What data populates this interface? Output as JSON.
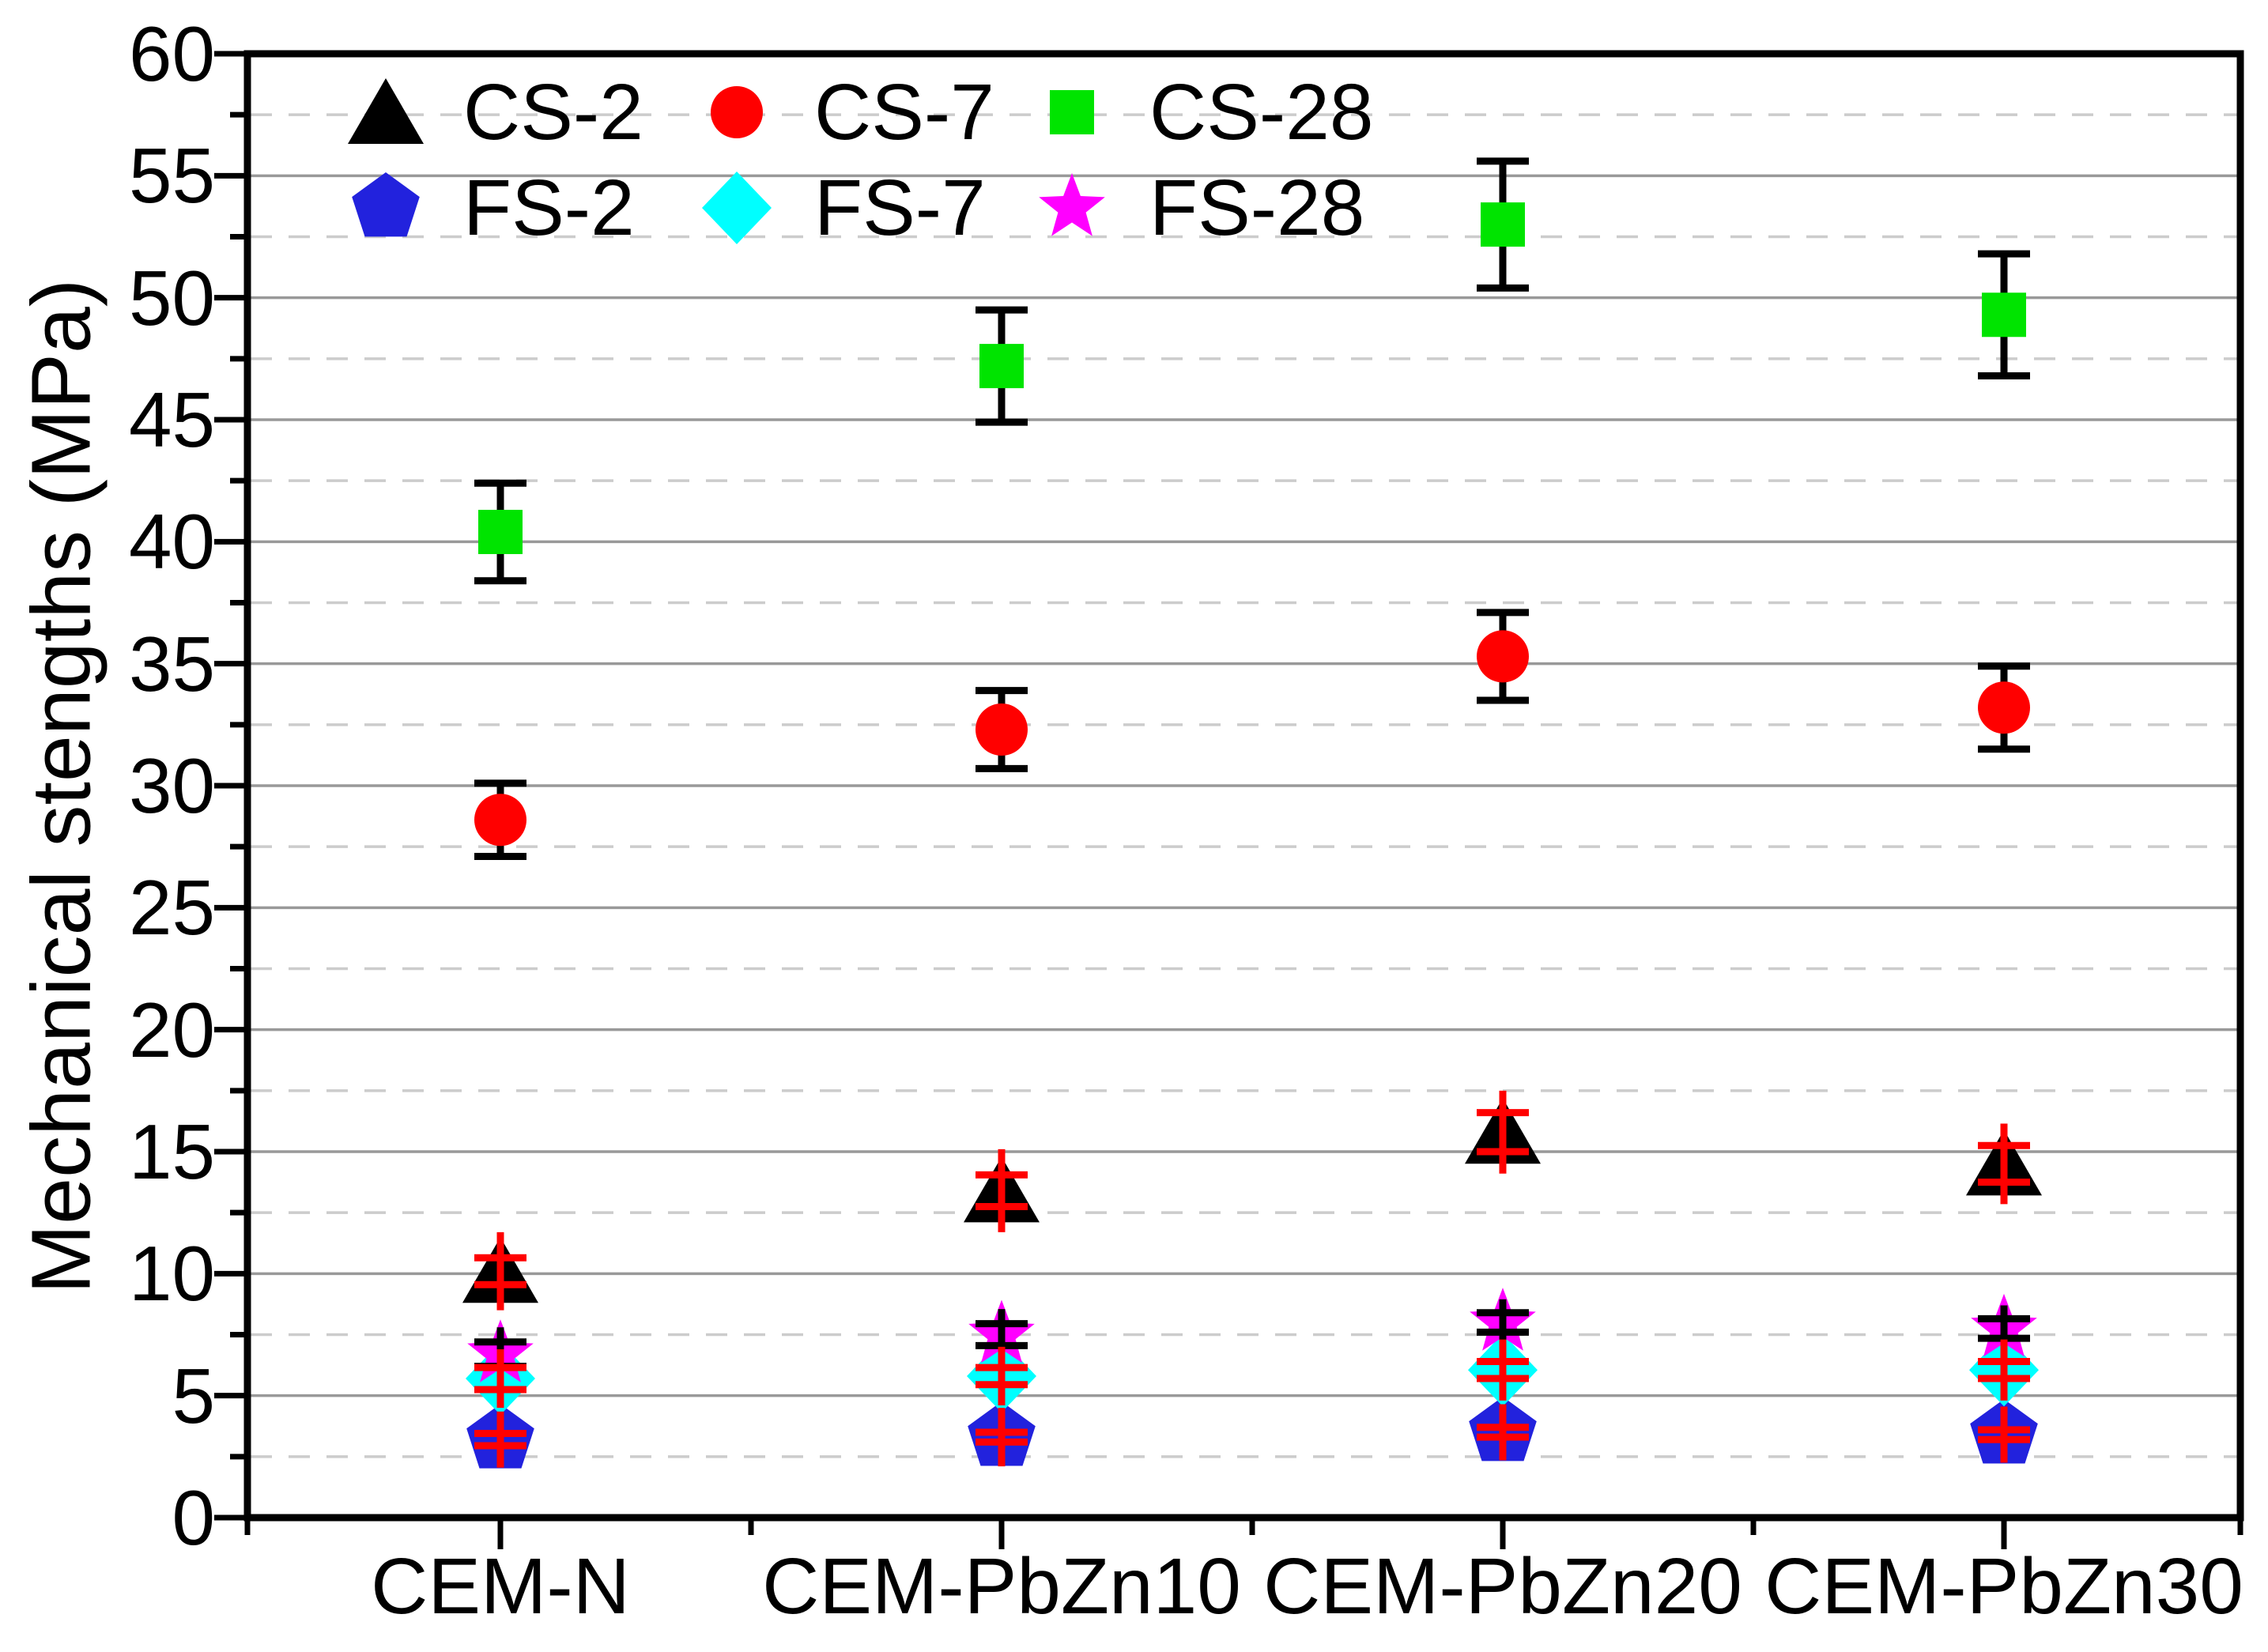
{
  "figure": {
    "ylabel": "Mechanical stengths (MPa)"
  },
  "chart_data": {
    "type": "scatter",
    "title": "",
    "xlabel": "",
    "ylabel": "Mechanical stengths (MPa)",
    "categories": [
      "CEM-N",
      "CEM-PbZn10",
      "CEM-PbZn20",
      "CEM-PbZn30"
    ],
    "ylim": [
      0,
      60
    ],
    "y_major_step": 5,
    "y_minor_step": 2.5,
    "y_tick_labels": [
      "0",
      "5",
      "10",
      "15",
      "20",
      "25",
      "30",
      "35",
      "40",
      "45",
      "50",
      "55",
      "60"
    ],
    "grid": {
      "major_style": "solid",
      "major_color": "#999999",
      "minor_style": "dashed",
      "minor_color": "#cccccc"
    },
    "legend_position": "top-left-inside",
    "axis_color": "#000000",
    "series": [
      {
        "name": "CS-2",
        "marker": "triangle",
        "color": "#000000",
        "error_color": "#ff0000",
        "error_in_front": true,
        "values": [
          10.1,
          13.4,
          15.8,
          14.5
        ],
        "error_cap": [
          0.55,
          0.65,
          0.8,
          0.75
        ],
        "error_line": [
          1.6,
          1.7,
          1.7,
          1.65
        ]
      },
      {
        "name": "CS-7",
        "marker": "circle",
        "color": "#ff0000",
        "error_color": "#000000",
        "error_in_front": false,
        "values": [
          28.6,
          32.3,
          35.3,
          33.2
        ],
        "error_cap": [
          1.5,
          1.6,
          1.8,
          1.7
        ],
        "error_line": [
          1.5,
          1.6,
          1.8,
          1.7
        ]
      },
      {
        "name": "CS-28",
        "marker": "square",
        "color": "#00e400",
        "error_color": "#000000",
        "error_in_front": false,
        "values": [
          40.4,
          47.2,
          53.0,
          49.3
        ],
        "error_cap": [
          2.0,
          2.3,
          2.6,
          2.5
        ],
        "error_line": [
          2.0,
          2.3,
          2.6,
          2.5
        ]
      },
      {
        "name": "FS-2",
        "marker": "pentagon",
        "color": "#2222dd",
        "error_color": "#ff0000",
        "error_in_front": true,
        "values": [
          3.2,
          3.3,
          3.5,
          3.4
        ],
        "error_cap": [
          0.25,
          0.2,
          0.2,
          0.2
        ],
        "error_line": [
          1.15,
          1.2,
          1.15,
          1.15
        ]
      },
      {
        "name": "FS-7",
        "marker": "diamond",
        "color": "#00ffff",
        "error_color": "#ff0000",
        "error_in_front": true,
        "values": [
          5.7,
          5.8,
          6.05,
          6.05
        ],
        "error_cap": [
          0.45,
          0.35,
          0.35,
          0.35
        ],
        "error_line": [
          1.2,
          1.2,
          1.25,
          1.25
        ]
      },
      {
        "name": "FS-28",
        "marker": "star",
        "color": "#ff00ff",
        "error_color": "#000000",
        "error_in_front": true,
        "values": [
          6.7,
          7.5,
          8.0,
          7.75
        ],
        "error_cap": [
          0.5,
          0.45,
          0.4,
          0.4
        ],
        "error_line": [
          1.1,
          1.05,
          0.95,
          0.95
        ]
      }
    ]
  }
}
